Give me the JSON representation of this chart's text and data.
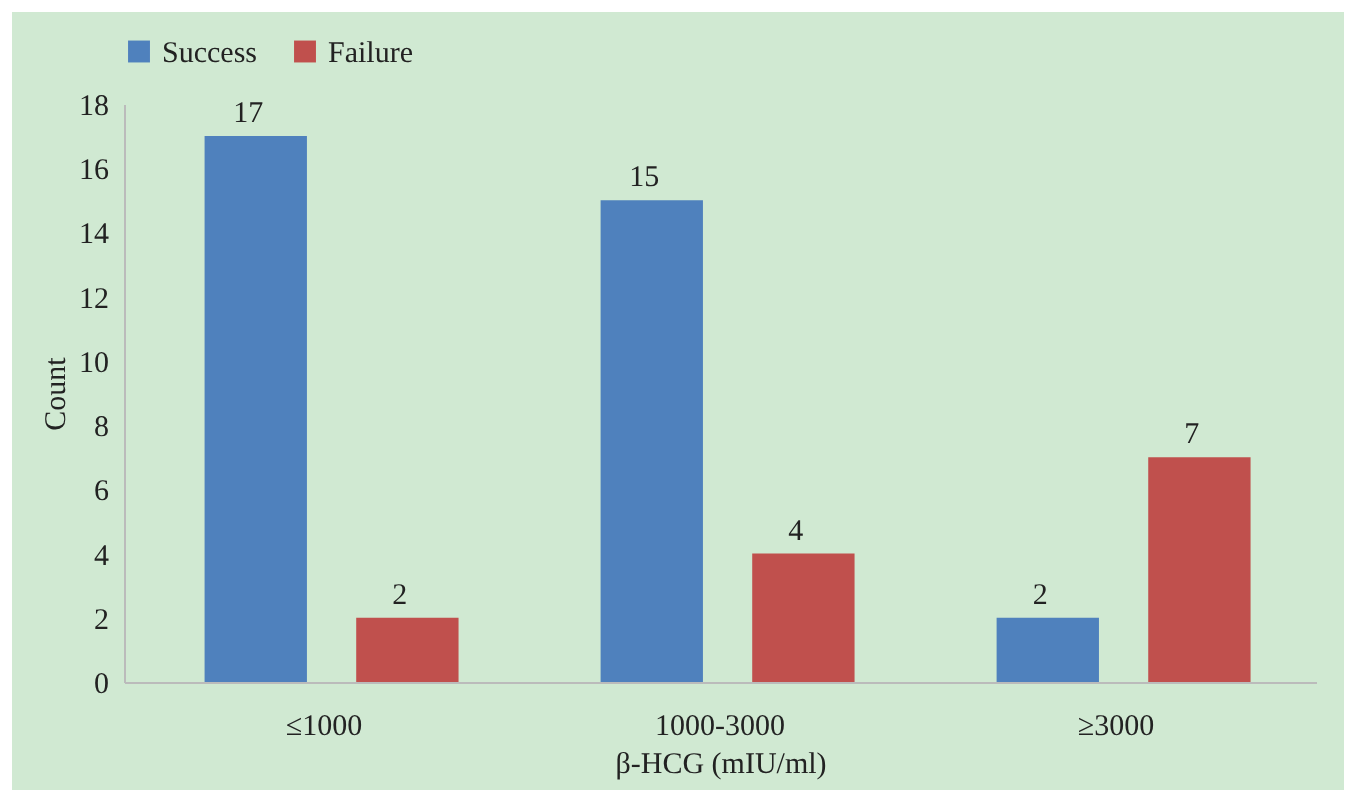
{
  "chart_data": {
    "type": "bar",
    "xlabel": "β-HCG (mIU/ml)",
    "ylabel": "Count",
    "categories": [
      "≤1000",
      "1000-3000",
      "≥3000"
    ],
    "series": [
      {
        "name": "Success",
        "color": "#4f81bd",
        "values": [
          17,
          15,
          2
        ]
      },
      {
        "name": "Failure",
        "color": "#c0504d",
        "values": [
          2,
          4,
          7
        ]
      }
    ],
    "ylim": [
      0,
      18
    ],
    "yticks": [
      0,
      2,
      4,
      6,
      8,
      10,
      12,
      14,
      16,
      18
    ],
    "grid": false,
    "legend": "top",
    "data_labels": true
  }
}
